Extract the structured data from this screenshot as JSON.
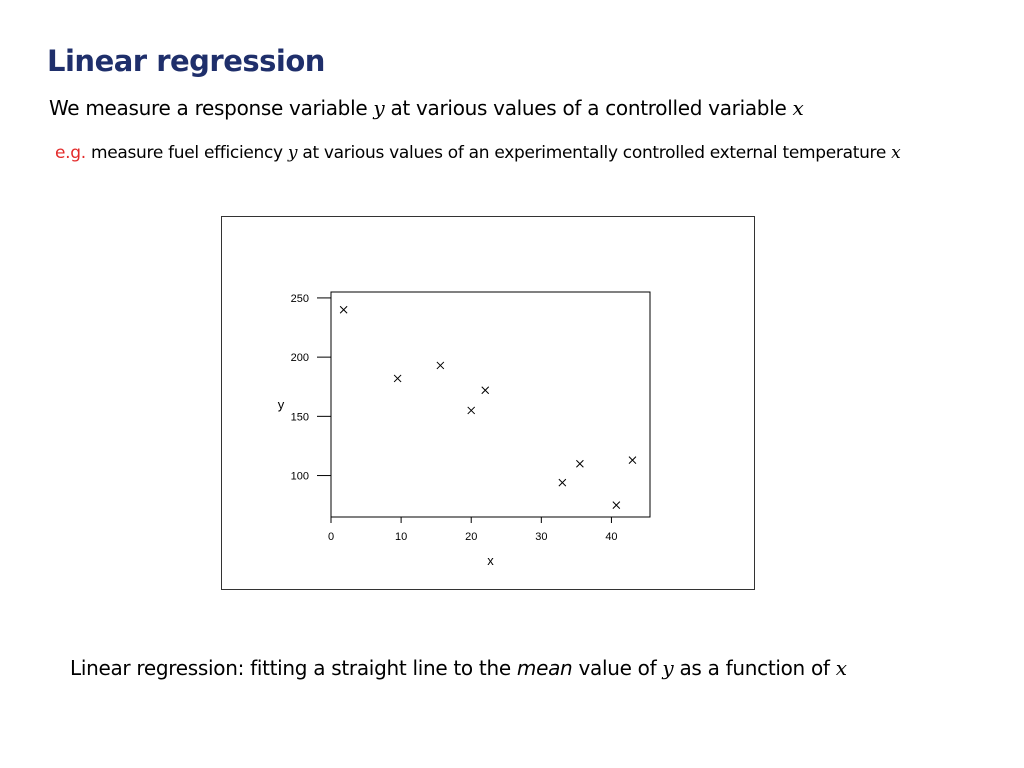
{
  "slide": {
    "title": "Linear regression",
    "line1": {
      "prefix": "We measure a response variable ",
      "var_y": "y",
      "middle": " at various values of a controlled variable ",
      "var_x": "x"
    },
    "line2": {
      "eg": "e.g.",
      "prefix": " measure fuel efficiency ",
      "var_y": "y",
      "middle": " at various values of an experimentally controlled external temperature ",
      "var_x": "x"
    },
    "bottom": {
      "prefix": "Linear regression:  fitting a straight line to the ",
      "emph": "mean",
      "middle": " value of ",
      "var_y": "y",
      "suffix": " as a function of ",
      "var_x": "x"
    }
  },
  "chart_data": {
    "type": "scatter",
    "xlabel": "x",
    "ylabel": "y",
    "xlim": [
      0,
      45.5
    ],
    "ylim": [
      65,
      255
    ],
    "xticks": [
      0,
      10,
      20,
      30,
      40
    ],
    "yticks": [
      100,
      150,
      200,
      250
    ],
    "marker": "x",
    "grid": false,
    "points": [
      {
        "x": 1.8,
        "y": 240
      },
      {
        "x": 9.5,
        "y": 182
      },
      {
        "x": 15.6,
        "y": 193
      },
      {
        "x": 20.0,
        "y": 155
      },
      {
        "x": 22.0,
        "y": 172
      },
      {
        "x": 33.0,
        "y": 94
      },
      {
        "x": 35.5,
        "y": 110
      },
      {
        "x": 40.7,
        "y": 75
      },
      {
        "x": 43.0,
        "y": 113
      }
    ],
    "colors": {
      "marker": "#000000",
      "axis": "#000000"
    }
  }
}
